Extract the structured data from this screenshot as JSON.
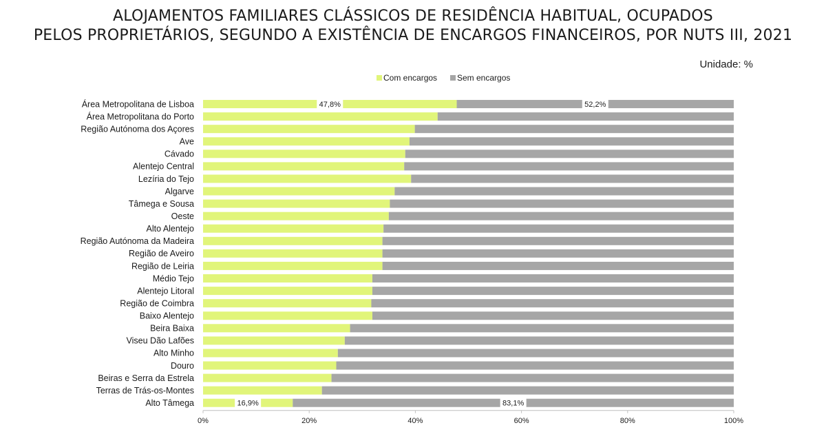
{
  "title_line1": "ALOJAMENTOS FAMILIARES CLÁSSICOS DE RESIDÊNCIA HABITUAL, OCUPADOS",
  "title_line2": "PELOS PROPRIETÁRIOS, SEGUNDO A EXISTÊNCIA DE ENCARGOS FINANCEIROS, POR NUTS III, 2021",
  "unit_label": "Unidade: %",
  "chart_data": {
    "type": "bar",
    "orientation": "horizontal",
    "stacked": true,
    "categories": [
      "Área Metropolitana de Lisboa",
      "Área Metropolitana do Porto",
      "Região Autónoma dos Açores",
      "Ave",
      "Cávado",
      "Alentejo Central",
      "Lezíria do Tejo",
      "Algarve",
      "Tâmega e Sousa",
      "Oeste",
      "Alto Alentejo",
      "Região Autónoma da Madeira",
      "Região de Aveiro",
      "Região de Leiria",
      "Médio Tejo",
      "Alentejo Litoral",
      "Região de Coimbra",
      "Baixo Alentejo",
      "Beira Baixa",
      "Viseu Dão Lafões",
      "Alto Minho",
      "Douro",
      "Beiras e Serra da Estrela",
      "Terras de Trás-os-Montes",
      "Alto Tâmega"
    ],
    "series": [
      {
        "name": "Com encargos",
        "color": "#e1f57a",
        "values": [
          47.8,
          44.2,
          39.9,
          38.9,
          38.1,
          37.9,
          39.2,
          36.1,
          35.2,
          35.0,
          34.0,
          33.8,
          33.8,
          33.8,
          31.9,
          31.9,
          31.7,
          31.9,
          27.7,
          26.7,
          25.4,
          25.1,
          24.2,
          22.4,
          16.9
        ]
      },
      {
        "name": "Sem encargos",
        "color": "#a6a6a6",
        "values": [
          52.2,
          55.8,
          60.1,
          61.1,
          61.9,
          62.1,
          60.8,
          63.9,
          64.8,
          65.0,
          66.0,
          66.2,
          66.2,
          66.2,
          68.1,
          68.1,
          68.3,
          68.1,
          72.3,
          73.3,
          74.6,
          74.9,
          75.8,
          77.6,
          83.1
        ]
      }
    ],
    "data_labels": [
      {
        "category_index": 0,
        "series_index": 0,
        "text": "47,8%"
      },
      {
        "category_index": 0,
        "series_index": 1,
        "text": "52,2%"
      },
      {
        "category_index": 24,
        "series_index": 0,
        "text": "16,9%"
      },
      {
        "category_index": 24,
        "series_index": 1,
        "text": "83,1%"
      }
    ],
    "x_ticks": [
      "0%",
      "20%",
      "40%",
      "60%",
      "80%",
      "100%"
    ],
    "xlim": [
      0,
      100
    ],
    "legend_position": "top",
    "grid": false
  }
}
